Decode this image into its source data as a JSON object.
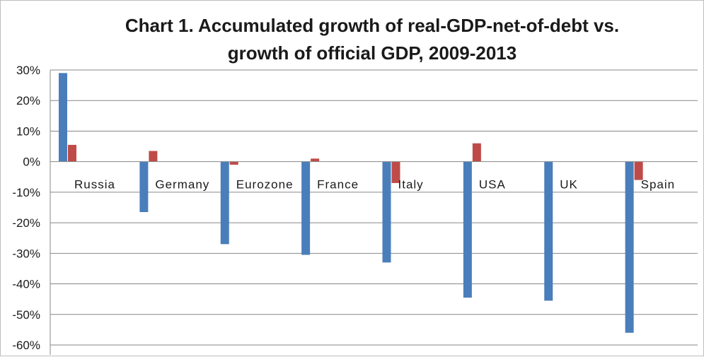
{
  "chart_data": {
    "type": "bar",
    "title": [
      "Chart 1. Accumulated growth of real-GDP-net-of-debt vs.",
      "growth of official GDP, 2009-2013"
    ],
    "xlabel": "",
    "ylabel": "",
    "ylim": [
      -60,
      30
    ],
    "yticks": [
      30,
      20,
      10,
      0,
      -10,
      -20,
      -30,
      -40,
      -50,
      -60
    ],
    "ytick_labels": [
      "30%",
      "20%",
      "10%",
      "0%",
      "-10%",
      "-20%",
      "-30%",
      "-40%",
      "-50%",
      "-60%"
    ],
    "grid": true,
    "legend": "none",
    "categories": [
      "Russia",
      "Germany",
      "Eurozone",
      "France",
      "Italy",
      "USA",
      "UK",
      "Spain"
    ],
    "series": [
      {
        "values": [
          29,
          -16.5,
          -27,
          -30.5,
          -33,
          -44.5,
          -45.5,
          -56
        ],
        "color": "#4a7ebb"
      },
      {
        "values": [
          5.5,
          3.5,
          -1,
          1,
          -7,
          6,
          0,
          -6
        ],
        "color": "#be4b48"
      }
    ]
  }
}
